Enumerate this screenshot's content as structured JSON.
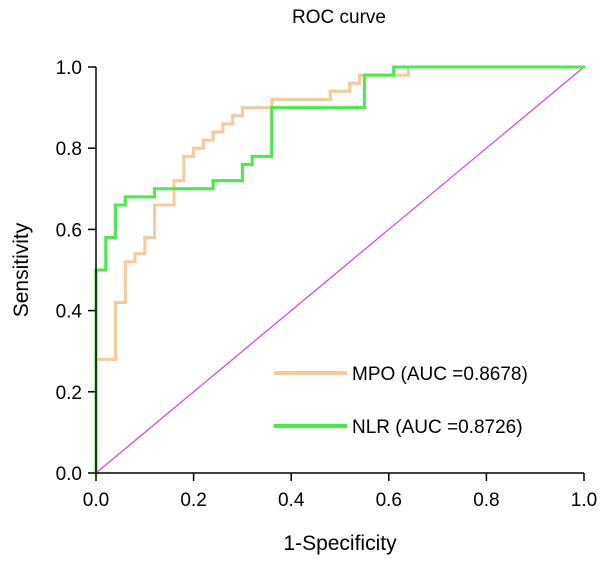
{
  "chart_data": {
    "type": "line",
    "title": "ROC curve",
    "xlabel": "1-Specificity",
    "ylabel": "Sensitivity",
    "xlim": [
      0,
      1
    ],
    "ylim": [
      0,
      1
    ],
    "x_ticks": [
      "0.0",
      "0.2",
      "0.4",
      "0.6",
      "0.8",
      "1.0"
    ],
    "y_ticks": [
      "0.0",
      "0.2",
      "0.4",
      "0.6",
      "0.8",
      "1.0"
    ],
    "legend_position": "bottom-right",
    "grid": false,
    "series": [
      {
        "name": "MPO (AUC =0.8678)",
        "color": "#f9c99a",
        "points": [
          [
            0,
            0
          ],
          [
            0,
            0.28
          ],
          [
            0.04,
            0.28
          ],
          [
            0.04,
            0.42
          ],
          [
            0.06,
            0.42
          ],
          [
            0.06,
            0.52
          ],
          [
            0.08,
            0.52
          ],
          [
            0.08,
            0.54
          ],
          [
            0.1,
            0.54
          ],
          [
            0.1,
            0.58
          ],
          [
            0.12,
            0.58
          ],
          [
            0.12,
            0.66
          ],
          [
            0.16,
            0.66
          ],
          [
            0.16,
            0.72
          ],
          [
            0.18,
            0.72
          ],
          [
            0.18,
            0.78
          ],
          [
            0.2,
            0.78
          ],
          [
            0.2,
            0.8
          ],
          [
            0.22,
            0.8
          ],
          [
            0.22,
            0.82
          ],
          [
            0.24,
            0.82
          ],
          [
            0.24,
            0.84
          ],
          [
            0.26,
            0.84
          ],
          [
            0.26,
            0.86
          ],
          [
            0.28,
            0.86
          ],
          [
            0.28,
            0.88
          ],
          [
            0.3,
            0.88
          ],
          [
            0.3,
            0.9
          ],
          [
            0.36,
            0.9
          ],
          [
            0.36,
            0.92
          ],
          [
            0.48,
            0.92
          ],
          [
            0.48,
            0.94
          ],
          [
            0.52,
            0.94
          ],
          [
            0.52,
            0.96
          ],
          [
            0.54,
            0.96
          ],
          [
            0.54,
            0.98
          ],
          [
            0.64,
            0.98
          ],
          [
            0.64,
            1.0
          ],
          [
            1.0,
            1.0
          ]
        ]
      },
      {
        "name": "NLR (AUC =0.8726)",
        "color": "#44ee44",
        "points": [
          [
            0,
            0
          ],
          [
            0,
            0.5
          ],
          [
            0.02,
            0.5
          ],
          [
            0.02,
            0.58
          ],
          [
            0.04,
            0.58
          ],
          [
            0.04,
            0.66
          ],
          [
            0.06,
            0.66
          ],
          [
            0.06,
            0.68
          ],
          [
            0.12,
            0.68
          ],
          [
            0.12,
            0.7
          ],
          [
            0.24,
            0.7
          ],
          [
            0.24,
            0.72
          ],
          [
            0.3,
            0.72
          ],
          [
            0.3,
            0.76
          ],
          [
            0.32,
            0.76
          ],
          [
            0.32,
            0.78
          ],
          [
            0.36,
            0.78
          ],
          [
            0.36,
            0.9
          ],
          [
            0.55,
            0.9
          ],
          [
            0.55,
            0.98
          ],
          [
            0.61,
            0.98
          ],
          [
            0.61,
            1.0
          ],
          [
            1.0,
            1.0
          ]
        ]
      },
      {
        "name": "",
        "color": "#cc44ee",
        "points": [
          [
            0,
            0
          ],
          [
            1,
            1
          ]
        ]
      }
    ]
  }
}
